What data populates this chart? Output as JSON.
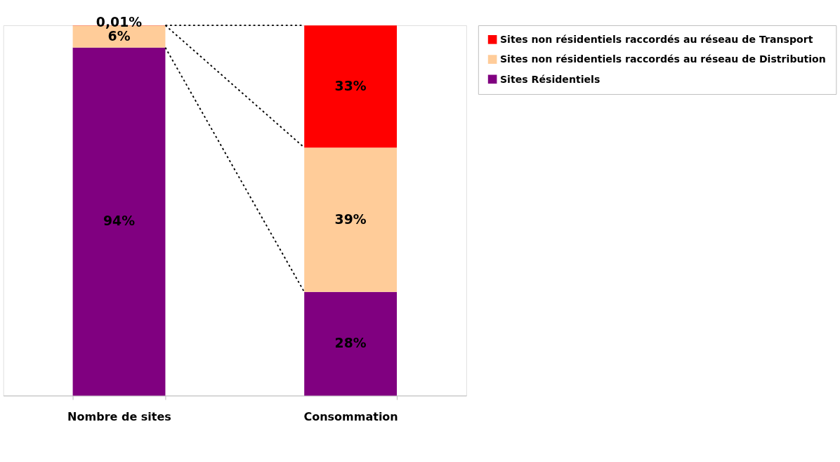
{
  "chart_data": {
    "type": "bar",
    "stacked": true,
    "categories": [
      "Nombre de sites",
      "Consommation"
    ],
    "series": [
      {
        "name": "Sites Résidentiels",
        "color": "#800080",
        "values": [
          94,
          28
        ],
        "value_labels": [
          "94%",
          "28%"
        ]
      },
      {
        "name": "Sites non résidentiels raccordés au réseau de Distribution",
        "color": "#ffcc99",
        "values": [
          6,
          39
        ],
        "value_labels": [
          "6%",
          "39%"
        ]
      },
      {
        "name": "Sites non résidentiels raccordés au réseau de Transport",
        "color": "#ff0000",
        "values": [
          0.01,
          33
        ],
        "value_labels": [
          "0,01%",
          "33%"
        ]
      }
    ],
    "legend": "right",
    "grid": false
  }
}
